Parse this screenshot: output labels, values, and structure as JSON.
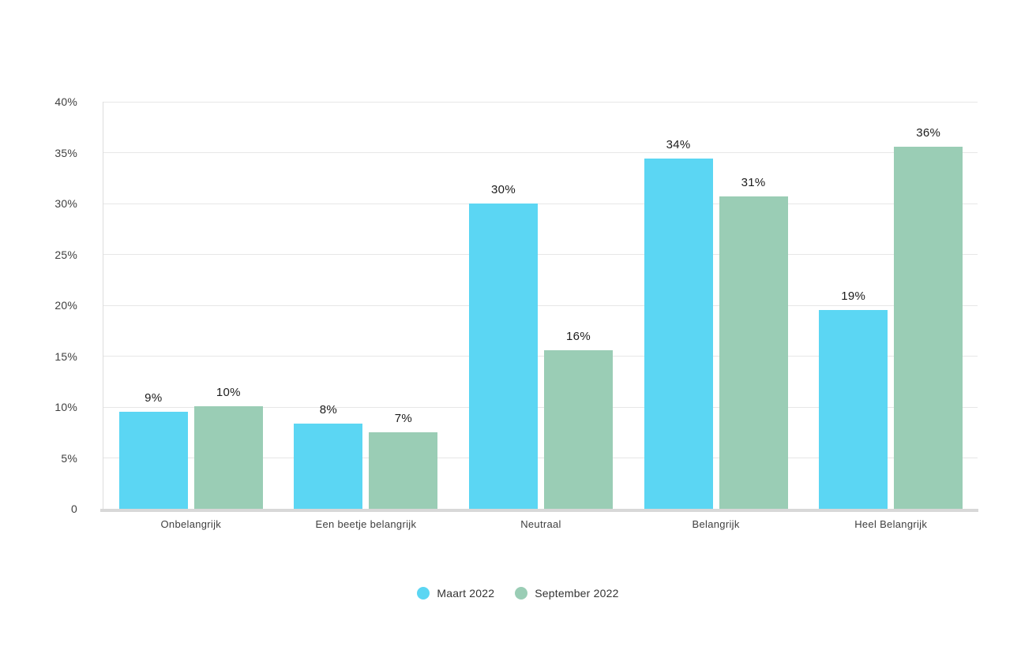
{
  "chart_data": {
    "type": "bar",
    "title": "",
    "xlabel": "",
    "ylabel": "",
    "categories": [
      "Onbelangrijk",
      "Een beetje belangrijk",
      "Neutraal",
      "Belangrijk",
      "Heel Belangrijk"
    ],
    "series": [
      {
        "name": "Maart 2022",
        "color": "#5bd6f3",
        "values": [
          9.5,
          8.4,
          30.0,
          34.4,
          19.5
        ],
        "labels": [
          "9%",
          "8%",
          "30%",
          "34%",
          "19%"
        ]
      },
      {
        "name": "September 2022",
        "color": "#9acdb5",
        "values": [
          10.1,
          7.5,
          15.6,
          30.7,
          35.6
        ],
        "labels": [
          "10%",
          "7%",
          "16%",
          "31%",
          "36%"
        ]
      }
    ],
    "y_axis": {
      "min": 0,
      "max": 40,
      "tick_step": 5,
      "tick_labels": [
        "0",
        "5%",
        "10%",
        "15%",
        "20%",
        "25%",
        "30%",
        "35%",
        "40%"
      ]
    },
    "grid": true,
    "legend_position": "bottom"
  },
  "style_colors": {
    "gridline": "#e7e7e7",
    "axis_line": "#d8d8d8",
    "tick_text": "#3f3f3f",
    "data_label_text": "#1b1b1b",
    "background": "#ffffff"
  }
}
